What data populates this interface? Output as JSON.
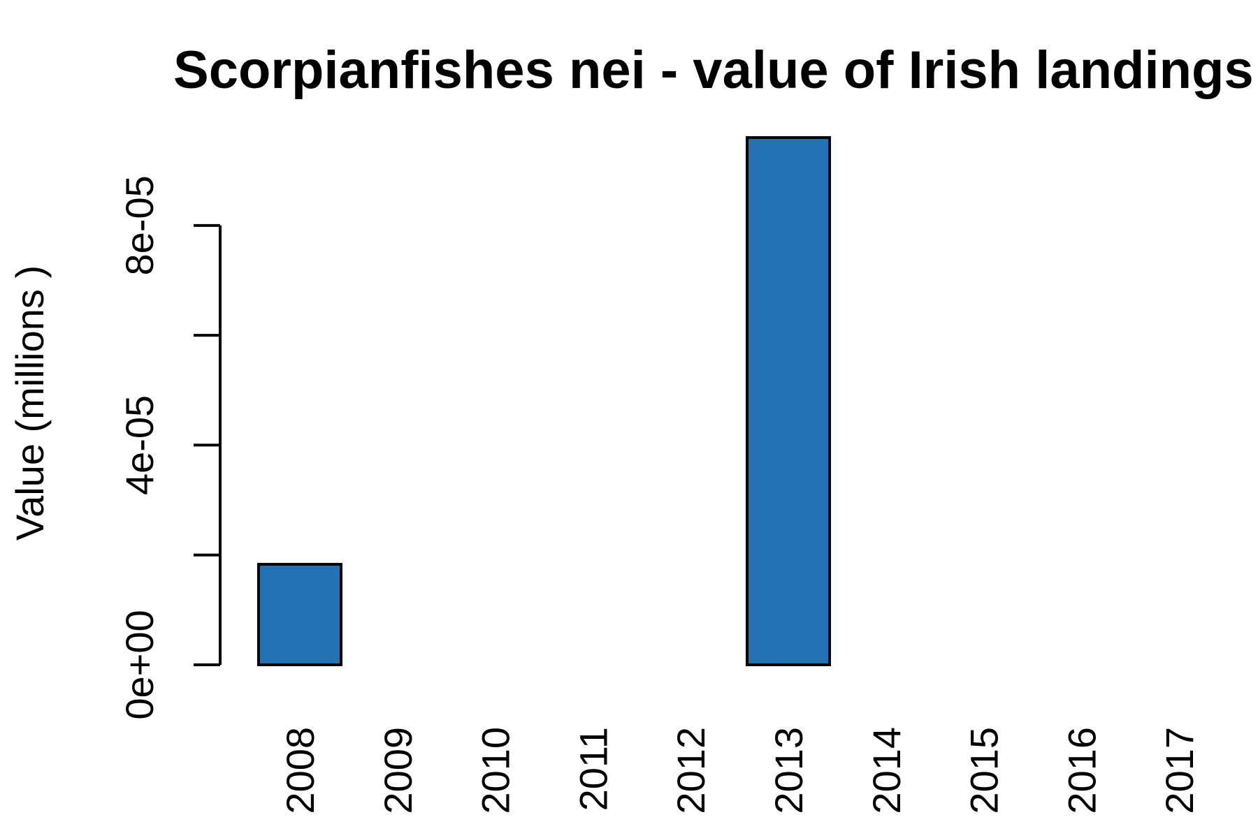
{
  "chart_data": {
    "type": "bar",
    "title": "Scorpianfishes nei - value of Irish landings",
    "xlabel": "",
    "ylabel": "Value (millions )",
    "categories": [
      "2008",
      "2009",
      "2010",
      "2011",
      "2012",
      "2013",
      "2014",
      "2015",
      "2016",
      "2017"
    ],
    "values": [
      1.83e-05,
      0,
      0,
      0,
      0,
      9.6e-05,
      0,
      0,
      0,
      0
    ],
    "yticks": [
      0,
      2e-05,
      4e-05,
      6e-05,
      8e-05
    ],
    "ytick_labels": [
      "0e+00",
      "",
      "4e-05",
      "",
      "8e-05"
    ],
    "ylim": [
      0,
      9.6e-05
    ],
    "bar_color": "#2372b4",
    "grid": false
  }
}
